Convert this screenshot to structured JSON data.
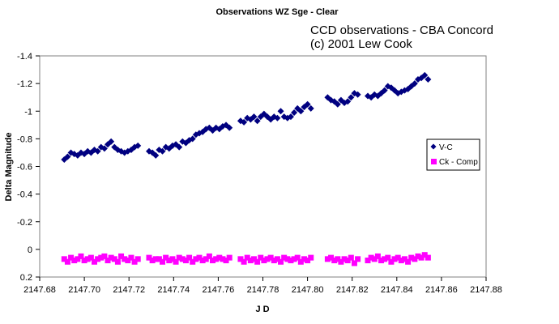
{
  "chart_data": {
    "type": "scatter",
    "title": "Observations WZ Sge - Clear",
    "annotation_lines": [
      "CCD observations - CBA Concord",
      "(c) 2001 Lew Cook"
    ],
    "xlabel": "J D",
    "ylabel": "Delta Magnitude",
    "xlim": [
      2147.68,
      2147.88
    ],
    "ylim": [
      -1.4,
      0.2
    ],
    "y_inverted": true,
    "grid": false,
    "legend_position": "right",
    "x_ticks": [
      2147.68,
      2147.7,
      2147.72,
      2147.74,
      2147.76,
      2147.78,
      2147.8,
      2147.82,
      2147.84,
      2147.86,
      2147.88
    ],
    "x_tick_labels": [
      "2147.68",
      "2147.70",
      "2147.72",
      "2147.74",
      "2147.76",
      "2147.78",
      "2147.80",
      "2147.82",
      "2147.84",
      "2147.86",
      "2147.88"
    ],
    "y_ticks": [
      -1.4,
      -1.2,
      -1.0,
      -0.8,
      -0.6,
      -0.4,
      -0.2,
      0,
      0.2
    ],
    "y_tick_labels": [
      "-1.4",
      "-1.2",
      "-1",
      "-0.8",
      "-0.6",
      "-0.4",
      "-0.2",
      "0",
      "0.2"
    ],
    "series": [
      {
        "name": "V-C",
        "marker": "diamond",
        "color": "#000080",
        "x": [
          2147.691,
          2147.6925,
          2147.694,
          2147.6955,
          2147.697,
          2147.6985,
          2147.7,
          2147.7015,
          2147.703,
          2147.7045,
          2147.706,
          2147.7075,
          2147.709,
          2147.7105,
          2147.712,
          2147.7135,
          2147.715,
          2147.7165,
          2147.718,
          2147.7195,
          2147.721,
          2147.7225,
          2147.724,
          2147.729,
          2147.7305,
          2147.732,
          2147.7335,
          2147.735,
          2147.7365,
          2147.738,
          2147.7395,
          2147.741,
          2147.7425,
          2147.744,
          2147.7455,
          2147.747,
          2147.7485,
          2147.75,
          2147.7515,
          2147.753,
          2147.7545,
          2147.756,
          2147.7575,
          2147.759,
          2147.7605,
          2147.762,
          2147.7635,
          2147.765,
          2147.77,
          2147.7715,
          2147.773,
          2147.7745,
          2147.776,
          2147.7775,
          2147.779,
          2147.7805,
          2147.782,
          2147.7835,
          2147.785,
          2147.7865,
          2147.788,
          2147.7895,
          2147.791,
          2147.7925,
          2147.794,
          2147.7955,
          2147.797,
          2147.7985,
          2147.8,
          2147.8015,
          2147.809,
          2147.8105,
          2147.812,
          2147.8135,
          2147.815,
          2147.8165,
          2147.818,
          2147.8195,
          2147.821,
          2147.8225,
          2147.827,
          2147.8285,
          2147.83,
          2147.8315,
          2147.833,
          2147.8345,
          2147.836,
          2147.8375,
          2147.839,
          2147.8405,
          2147.842,
          2147.8435,
          2147.845,
          2147.8465,
          2147.848,
          2147.8495,
          2147.851,
          2147.8525,
          2147.854
        ],
        "y": [
          -0.65,
          -0.67,
          -0.7,
          -0.69,
          -0.68,
          -0.7,
          -0.69,
          -0.71,
          -0.7,
          -0.72,
          -0.71,
          -0.74,
          -0.73,
          -0.76,
          -0.78,
          -0.74,
          -0.72,
          -0.71,
          -0.7,
          -0.71,
          -0.72,
          -0.74,
          -0.75,
          -0.71,
          -0.7,
          -0.68,
          -0.72,
          -0.71,
          -0.74,
          -0.73,
          -0.75,
          -0.76,
          -0.74,
          -0.78,
          -0.77,
          -0.79,
          -0.8,
          -0.83,
          -0.84,
          -0.85,
          -0.87,
          -0.88,
          -0.86,
          -0.88,
          -0.87,
          -0.89,
          -0.9,
          -0.88,
          -0.93,
          -0.92,
          -0.95,
          -0.94,
          -0.96,
          -0.93,
          -0.96,
          -0.98,
          -0.96,
          -0.94,
          -0.96,
          -0.95,
          -1.0,
          -0.96,
          -0.95,
          -0.96,
          -0.99,
          -1.02,
          -1.0,
          -1.03,
          -1.05,
          -1.02,
          -1.1,
          -1.08,
          -1.07,
          -1.05,
          -1.08,
          -1.06,
          -1.07,
          -1.1,
          -1.13,
          -1.12,
          -1.11,
          -1.1,
          -1.12,
          -1.11,
          -1.13,
          -1.15,
          -1.18,
          -1.17,
          -1.15,
          -1.13,
          -1.14,
          -1.15,
          -1.16,
          -1.18,
          -1.2,
          -1.23,
          -1.24,
          -1.26,
          -1.23
        ]
      },
      {
        "name": "Ck - Comp",
        "marker": "square",
        "color": "#FF00FF",
        "x": [
          2147.691,
          2147.6925,
          2147.694,
          2147.6955,
          2147.697,
          2147.6985,
          2147.7,
          2147.7015,
          2147.703,
          2147.7045,
          2147.706,
          2147.7075,
          2147.709,
          2147.7105,
          2147.712,
          2147.7135,
          2147.715,
          2147.7165,
          2147.718,
          2147.7195,
          2147.721,
          2147.7225,
          2147.724,
          2147.729,
          2147.7305,
          2147.732,
          2147.7335,
          2147.735,
          2147.7365,
          2147.738,
          2147.7395,
          2147.741,
          2147.7425,
          2147.744,
          2147.7455,
          2147.747,
          2147.7485,
          2147.75,
          2147.7515,
          2147.753,
          2147.7545,
          2147.756,
          2147.7575,
          2147.759,
          2147.7605,
          2147.762,
          2147.7635,
          2147.765,
          2147.77,
          2147.7715,
          2147.773,
          2147.7745,
          2147.776,
          2147.7775,
          2147.779,
          2147.7805,
          2147.782,
          2147.7835,
          2147.785,
          2147.7865,
          2147.788,
          2147.7895,
          2147.791,
          2147.7925,
          2147.794,
          2147.7955,
          2147.797,
          2147.7985,
          2147.8,
          2147.8015,
          2147.809,
          2147.8105,
          2147.812,
          2147.8135,
          2147.815,
          2147.8165,
          2147.818,
          2147.8195,
          2147.821,
          2147.8225,
          2147.827,
          2147.8285,
          2147.83,
          2147.8315,
          2147.833,
          2147.8345,
          2147.836,
          2147.8375,
          2147.839,
          2147.8405,
          2147.842,
          2147.8435,
          2147.845,
          2147.8465,
          2147.848,
          2147.8495,
          2147.851,
          2147.8525,
          2147.854
        ],
        "y": [
          0.07,
          0.09,
          0.06,
          0.08,
          0.07,
          0.05,
          0.08,
          0.07,
          0.06,
          0.09,
          0.07,
          0.06,
          0.05,
          0.08,
          0.06,
          0.07,
          0.09,
          0.05,
          0.07,
          0.08,
          0.06,
          0.09,
          0.07,
          0.06,
          0.08,
          0.07,
          0.07,
          0.09,
          0.06,
          0.08,
          0.07,
          0.09,
          0.06,
          0.07,
          0.08,
          0.06,
          0.09,
          0.07,
          0.06,
          0.08,
          0.07,
          0.05,
          0.08,
          0.07,
          0.06,
          0.07,
          0.08,
          0.06,
          0.07,
          0.09,
          0.06,
          0.08,
          0.07,
          0.09,
          0.06,
          0.08,
          0.07,
          0.06,
          0.08,
          0.07,
          0.09,
          0.06,
          0.07,
          0.08,
          0.07,
          0.06,
          0.09,
          0.07,
          0.08,
          0.06,
          0.07,
          0.06,
          0.08,
          0.07,
          0.09,
          0.07,
          0.08,
          0.06,
          0.1,
          0.07,
          0.08,
          0.06,
          0.07,
          0.05,
          0.08,
          0.07,
          0.06,
          0.09,
          0.07,
          0.06,
          0.08,
          0.07,
          0.09,
          0.06,
          0.07,
          0.05,
          0.06,
          0.04,
          0.06
        ]
      }
    ]
  }
}
